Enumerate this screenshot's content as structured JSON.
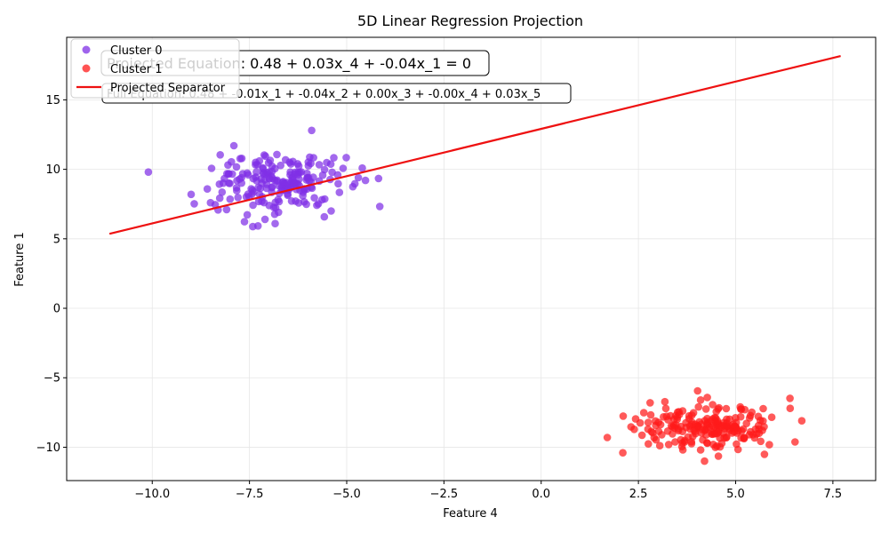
{
  "chart_data": {
    "type": "scatter",
    "title": "5D Linear Regression Projection",
    "xlabel": "Feature 4",
    "ylabel": "Feature 1",
    "xlim": [
      -12.2,
      8.6
    ],
    "ylim": [
      -12.4,
      19.5
    ],
    "xticks": [
      -10.0,
      -7.5,
      -5.0,
      -2.5,
      0.0,
      2.5,
      5.0,
      7.5
    ],
    "xtick_labels": [
      "−10.0",
      "−7.5",
      "−5.0",
      "−2.5",
      "0.0",
      "2.5",
      "5.0",
      "7.5"
    ],
    "yticks": [
      -10,
      -5,
      0,
      5,
      10,
      15
    ],
    "ytick_labels": [
      "−10",
      "−5",
      "0",
      "5",
      "10",
      "15"
    ],
    "grid": true,
    "legend_position": "top-left",
    "series": [
      {
        "name": "Cluster 0",
        "kind": "scatter",
        "color": "#7f2fe6",
        "cluster": {
          "center": [
            -6.8,
            9.0
          ],
          "spread": [
            0.85,
            1.1
          ],
          "count": 200,
          "seed": 7
        },
        "points": [
          [
            -10.1,
            9.8
          ],
          [
            -5.9,
            12.8
          ],
          [
            -7.9,
            11.7
          ],
          [
            -9.0,
            8.2
          ],
          [
            -4.7,
            9.4
          ],
          [
            -7.1,
            6.4
          ],
          [
            -5.4,
            7.0
          ]
        ]
      },
      {
        "name": "Cluster 1",
        "kind": "scatter",
        "color": "#ff1a1a",
        "cluster": {
          "center": [
            4.3,
            -8.6
          ],
          "spread": [
            0.95,
            0.8
          ],
          "count": 200,
          "seed": 13
        },
        "points": [
          [
            1.7,
            -9.3
          ],
          [
            2.1,
            -10.4
          ],
          [
            4.2,
            -11.0
          ],
          [
            6.7,
            -8.1
          ],
          [
            2.8,
            -6.8
          ],
          [
            6.4,
            -7.2
          ],
          [
            4.1,
            -6.6
          ]
        ]
      },
      {
        "name": "Projected Separator",
        "kind": "line",
        "color": "#ee1111",
        "x": [
          -11.1,
          7.7
        ],
        "y": [
          5.36,
          18.15
        ]
      }
    ],
    "annotations": [
      {
        "text": "Projected Equation: 0.48 + 0.03x_4 + -0.04x_1 = 0"
      },
      {
        "text": "Full Equation: 0.48 + -0.01x_1 + -0.04x_2 + 0.00x_3 + -0.00x_4 + 0.03x_5"
      }
    ]
  }
}
